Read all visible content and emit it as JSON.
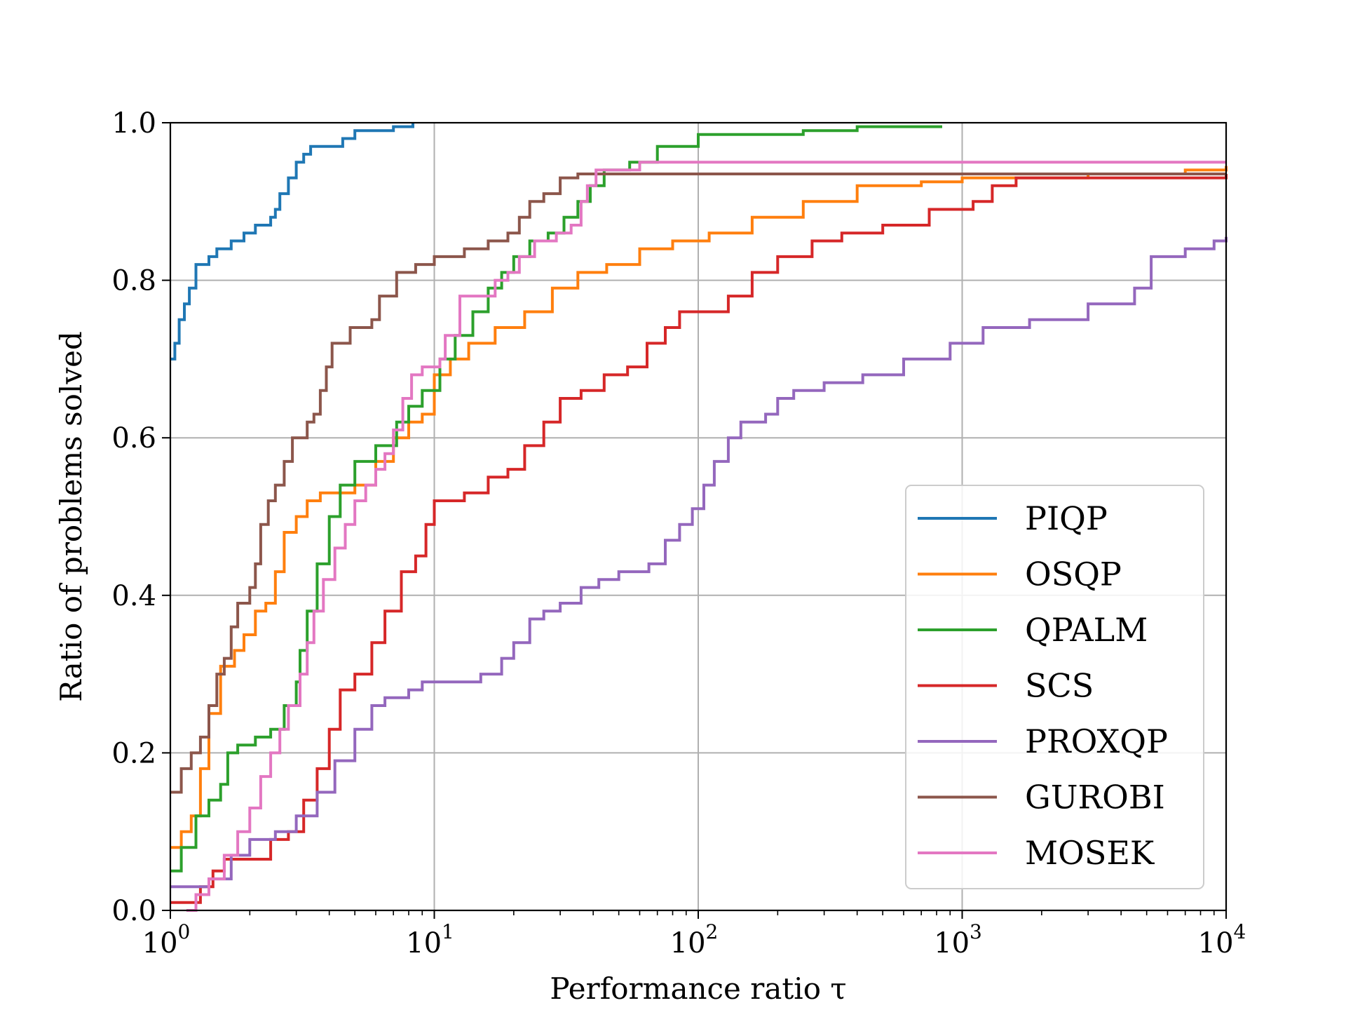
{
  "chart_data": {
    "type": "line",
    "title": "",
    "xlabel": "Performance ratio τ",
    "ylabel": "Ratio of problems solved",
    "xscale": "log",
    "xlim": [
      1,
      10000
    ],
    "ylim": [
      0,
      1
    ],
    "grid": true,
    "legend_position": "lower-right",
    "x_ticks": [
      {
        "base": "10",
        "exp": "0",
        "value": 1
      },
      {
        "base": "10",
        "exp": "1",
        "value": 10
      },
      {
        "base": "10",
        "exp": "2",
        "value": 100
      },
      {
        "base": "10",
        "exp": "3",
        "value": 1000
      },
      {
        "base": "10",
        "exp": "4",
        "value": 10000
      }
    ],
    "y_ticks": [
      "0.0",
      "0.2",
      "0.4",
      "0.6",
      "0.8",
      "1.0"
    ],
    "series": [
      {
        "name": "PIQP",
        "color": "#1f77b4",
        "points": [
          [
            1,
            0.7
          ],
          [
            1.04,
            0.72
          ],
          [
            1.08,
            0.75
          ],
          [
            1.13,
            0.77
          ],
          [
            1.18,
            0.79
          ],
          [
            1.25,
            0.82
          ],
          [
            1.4,
            0.83
          ],
          [
            1.5,
            0.84
          ],
          [
            1.7,
            0.85
          ],
          [
            1.9,
            0.86
          ],
          [
            2.1,
            0.87
          ],
          [
            2.4,
            0.88
          ],
          [
            2.5,
            0.89
          ],
          [
            2.6,
            0.91
          ],
          [
            2.8,
            0.93
          ],
          [
            3.0,
            0.95
          ],
          [
            3.2,
            0.96
          ],
          [
            3.4,
            0.97
          ],
          [
            4.0,
            0.97
          ],
          [
            4.5,
            0.98
          ],
          [
            5.0,
            0.99
          ],
          [
            6.0,
            0.99
          ],
          [
            7.0,
            0.995
          ],
          [
            8.3,
            1.0
          ]
        ]
      },
      {
        "name": "OSQP",
        "color": "#ff7f0e",
        "points": [
          [
            1,
            0.08
          ],
          [
            1.1,
            0.1
          ],
          [
            1.2,
            0.12
          ],
          [
            1.3,
            0.18
          ],
          [
            1.4,
            0.25
          ],
          [
            1.55,
            0.31
          ],
          [
            1.75,
            0.33
          ],
          [
            1.9,
            0.35
          ],
          [
            2.1,
            0.38
          ],
          [
            2.3,
            0.39
          ],
          [
            2.5,
            0.43
          ],
          [
            2.7,
            0.48
          ],
          [
            3.0,
            0.5
          ],
          [
            3.3,
            0.52
          ],
          [
            3.7,
            0.53
          ],
          [
            4.4,
            0.53
          ],
          [
            5.0,
            0.54
          ],
          [
            6.0,
            0.57
          ],
          [
            7.0,
            0.6
          ],
          [
            8.0,
            0.62
          ],
          [
            9.0,
            0.63
          ],
          [
            10,
            0.68
          ],
          [
            11.5,
            0.7
          ],
          [
            13.5,
            0.72
          ],
          [
            17,
            0.74
          ],
          [
            22,
            0.76
          ],
          [
            28,
            0.79
          ],
          [
            35,
            0.81
          ],
          [
            45,
            0.82
          ],
          [
            60,
            0.84
          ],
          [
            80,
            0.85
          ],
          [
            110,
            0.86
          ],
          [
            160,
            0.88
          ],
          [
            250,
            0.9
          ],
          [
            400,
            0.92
          ],
          [
            700,
            0.925
          ],
          [
            1000,
            0.93
          ],
          [
            3000,
            0.935
          ],
          [
            7000,
            0.94
          ],
          [
            10000,
            0.945
          ]
        ]
      },
      {
        "name": "QPALM",
        "color": "#2ca02c",
        "points": [
          [
            1,
            0.05
          ],
          [
            1.1,
            0.08
          ],
          [
            1.25,
            0.12
          ],
          [
            1.4,
            0.14
          ],
          [
            1.55,
            0.16
          ],
          [
            1.65,
            0.2
          ],
          [
            1.8,
            0.21
          ],
          [
            2.1,
            0.22
          ],
          [
            2.4,
            0.23
          ],
          [
            2.7,
            0.26
          ],
          [
            3.0,
            0.29
          ],
          [
            3.1,
            0.33
          ],
          [
            3.3,
            0.38
          ],
          [
            3.6,
            0.44
          ],
          [
            4.0,
            0.5
          ],
          [
            4.4,
            0.54
          ],
          [
            5.0,
            0.57
          ],
          [
            6.0,
            0.59
          ],
          [
            7.2,
            0.62
          ],
          [
            8.0,
            0.64
          ],
          [
            9.0,
            0.66
          ],
          [
            10.5,
            0.7
          ],
          [
            12,
            0.73
          ],
          [
            14,
            0.76
          ],
          [
            16,
            0.79
          ],
          [
            18,
            0.81
          ],
          [
            20,
            0.83
          ],
          [
            23,
            0.85
          ],
          [
            27,
            0.86
          ],
          [
            31,
            0.88
          ],
          [
            35,
            0.9
          ],
          [
            39,
            0.92
          ],
          [
            44,
            0.94
          ],
          [
            55,
            0.95
          ],
          [
            70,
            0.97
          ],
          [
            100,
            0.985
          ],
          [
            250,
            0.99
          ],
          [
            400,
            0.995
          ],
          [
            840,
            0.995
          ]
        ]
      },
      {
        "name": "SCS",
        "color": "#d62728",
        "points": [
          [
            1,
            0.01
          ],
          [
            1.15,
            0.01
          ],
          [
            1.3,
            0.03
          ],
          [
            1.45,
            0.05
          ],
          [
            1.6,
            0.065
          ],
          [
            2.0,
            0.065
          ],
          [
            2.4,
            0.09
          ],
          [
            2.8,
            0.1
          ],
          [
            3.2,
            0.14
          ],
          [
            3.6,
            0.18
          ],
          [
            4.0,
            0.23
          ],
          [
            4.4,
            0.28
          ],
          [
            5.0,
            0.3
          ],
          [
            5.8,
            0.34
          ],
          [
            6.5,
            0.38
          ],
          [
            7.5,
            0.43
          ],
          [
            8.5,
            0.45
          ],
          [
            9.3,
            0.49
          ],
          [
            10,
            0.52
          ],
          [
            13,
            0.53
          ],
          [
            16,
            0.55
          ],
          [
            19,
            0.56
          ],
          [
            22,
            0.59
          ],
          [
            26,
            0.62
          ],
          [
            30,
            0.65
          ],
          [
            36,
            0.66
          ],
          [
            44,
            0.68
          ],
          [
            54,
            0.69
          ],
          [
            64,
            0.72
          ],
          [
            75,
            0.74
          ],
          [
            85,
            0.76
          ],
          [
            100,
            0.76
          ],
          [
            130,
            0.78
          ],
          [
            160,
            0.81
          ],
          [
            200,
            0.83
          ],
          [
            270,
            0.85
          ],
          [
            350,
            0.86
          ],
          [
            500,
            0.87
          ],
          [
            750,
            0.89
          ],
          [
            1100,
            0.9
          ],
          [
            1300,
            0.92
          ],
          [
            1600,
            0.93
          ],
          [
            10000,
            0.935
          ]
        ]
      },
      {
        "name": "PROXQP",
        "color": "#9467bd",
        "points": [
          [
            1,
            0.03
          ],
          [
            1.2,
            0.03
          ],
          [
            1.4,
            0.04
          ],
          [
            1.7,
            0.07
          ],
          [
            2.0,
            0.09
          ],
          [
            2.5,
            0.1
          ],
          [
            3.0,
            0.12
          ],
          [
            3.6,
            0.15
          ],
          [
            4.2,
            0.19
          ],
          [
            5.0,
            0.23
          ],
          [
            5.8,
            0.26
          ],
          [
            6.5,
            0.27
          ],
          [
            8.0,
            0.28
          ],
          [
            9.0,
            0.29
          ],
          [
            12,
            0.29
          ],
          [
            15,
            0.3
          ],
          [
            18,
            0.32
          ],
          [
            20,
            0.34
          ],
          [
            23,
            0.37
          ],
          [
            26,
            0.38
          ],
          [
            30,
            0.39
          ],
          [
            36,
            0.41
          ],
          [
            42,
            0.42
          ],
          [
            50,
            0.43
          ],
          [
            65,
            0.44
          ],
          [
            75,
            0.47
          ],
          [
            85,
            0.49
          ],
          [
            95,
            0.51
          ],
          [
            105,
            0.54
          ],
          [
            115,
            0.57
          ],
          [
            130,
            0.6
          ],
          [
            145,
            0.62
          ],
          [
            180,
            0.63
          ],
          [
            200,
            0.65
          ],
          [
            230,
            0.66
          ],
          [
            300,
            0.67
          ],
          [
            420,
            0.68
          ],
          [
            600,
            0.7
          ],
          [
            900,
            0.72
          ],
          [
            1200,
            0.74
          ],
          [
            1800,
            0.75
          ],
          [
            3000,
            0.77
          ],
          [
            4500,
            0.79
          ],
          [
            5200,
            0.83
          ],
          [
            7000,
            0.84
          ],
          [
            9000,
            0.85
          ],
          [
            10000,
            0.855
          ]
        ]
      },
      {
        "name": "GUROBI",
        "color": "#8c564b",
        "points": [
          [
            1,
            0.15
          ],
          [
            1.1,
            0.18
          ],
          [
            1.2,
            0.2
          ],
          [
            1.3,
            0.22
          ],
          [
            1.4,
            0.26
          ],
          [
            1.5,
            0.3
          ],
          [
            1.6,
            0.32
          ],
          [
            1.7,
            0.36
          ],
          [
            1.8,
            0.39
          ],
          [
            2.0,
            0.41
          ],
          [
            2.1,
            0.44
          ],
          [
            2.2,
            0.49
          ],
          [
            2.35,
            0.52
          ],
          [
            2.5,
            0.54
          ],
          [
            2.7,
            0.57
          ],
          [
            2.9,
            0.6
          ],
          [
            3.3,
            0.62
          ],
          [
            3.5,
            0.63
          ],
          [
            3.7,
            0.66
          ],
          [
            3.9,
            0.69
          ],
          [
            4.1,
            0.72
          ],
          [
            4.8,
            0.74
          ],
          [
            5.8,
            0.75
          ],
          [
            6.2,
            0.78
          ],
          [
            7.2,
            0.81
          ],
          [
            8.5,
            0.82
          ],
          [
            10,
            0.83
          ],
          [
            13,
            0.84
          ],
          [
            16,
            0.85
          ],
          [
            19,
            0.86
          ],
          [
            21,
            0.88
          ],
          [
            23,
            0.9
          ],
          [
            26,
            0.91
          ],
          [
            30,
            0.93
          ],
          [
            35,
            0.935
          ],
          [
            10000,
            0.935
          ]
        ]
      },
      {
        "name": "MOSEK",
        "color": "#e377c2",
        "points": [
          [
            1.15,
            0.0
          ],
          [
            1.25,
            0.02
          ],
          [
            1.4,
            0.04
          ],
          [
            1.6,
            0.07
          ],
          [
            1.8,
            0.1
          ],
          [
            2.0,
            0.13
          ],
          [
            2.2,
            0.17
          ],
          [
            2.4,
            0.2
          ],
          [
            2.6,
            0.23
          ],
          [
            2.8,
            0.26
          ],
          [
            3.1,
            0.3
          ],
          [
            3.3,
            0.34
          ],
          [
            3.5,
            0.38
          ],
          [
            3.8,
            0.42
          ],
          [
            4.2,
            0.46
          ],
          [
            4.6,
            0.49
          ],
          [
            5.0,
            0.52
          ],
          [
            5.5,
            0.54
          ],
          [
            6.0,
            0.56
          ],
          [
            6.5,
            0.58
          ],
          [
            7.0,
            0.61
          ],
          [
            7.6,
            0.65
          ],
          [
            8.2,
            0.68
          ],
          [
            9.0,
            0.69
          ],
          [
            10.5,
            0.7
          ],
          [
            11,
            0.73
          ],
          [
            12.5,
            0.78
          ],
          [
            15,
            0.78
          ],
          [
            17,
            0.8
          ],
          [
            19,
            0.81
          ],
          [
            21,
            0.83
          ],
          [
            24,
            0.85
          ],
          [
            29,
            0.86
          ],
          [
            33,
            0.87
          ],
          [
            36,
            0.9
          ],
          [
            38,
            0.92
          ],
          [
            41,
            0.94
          ],
          [
            60,
            0.95
          ],
          [
            10000,
            0.95
          ]
        ]
      }
    ]
  }
}
